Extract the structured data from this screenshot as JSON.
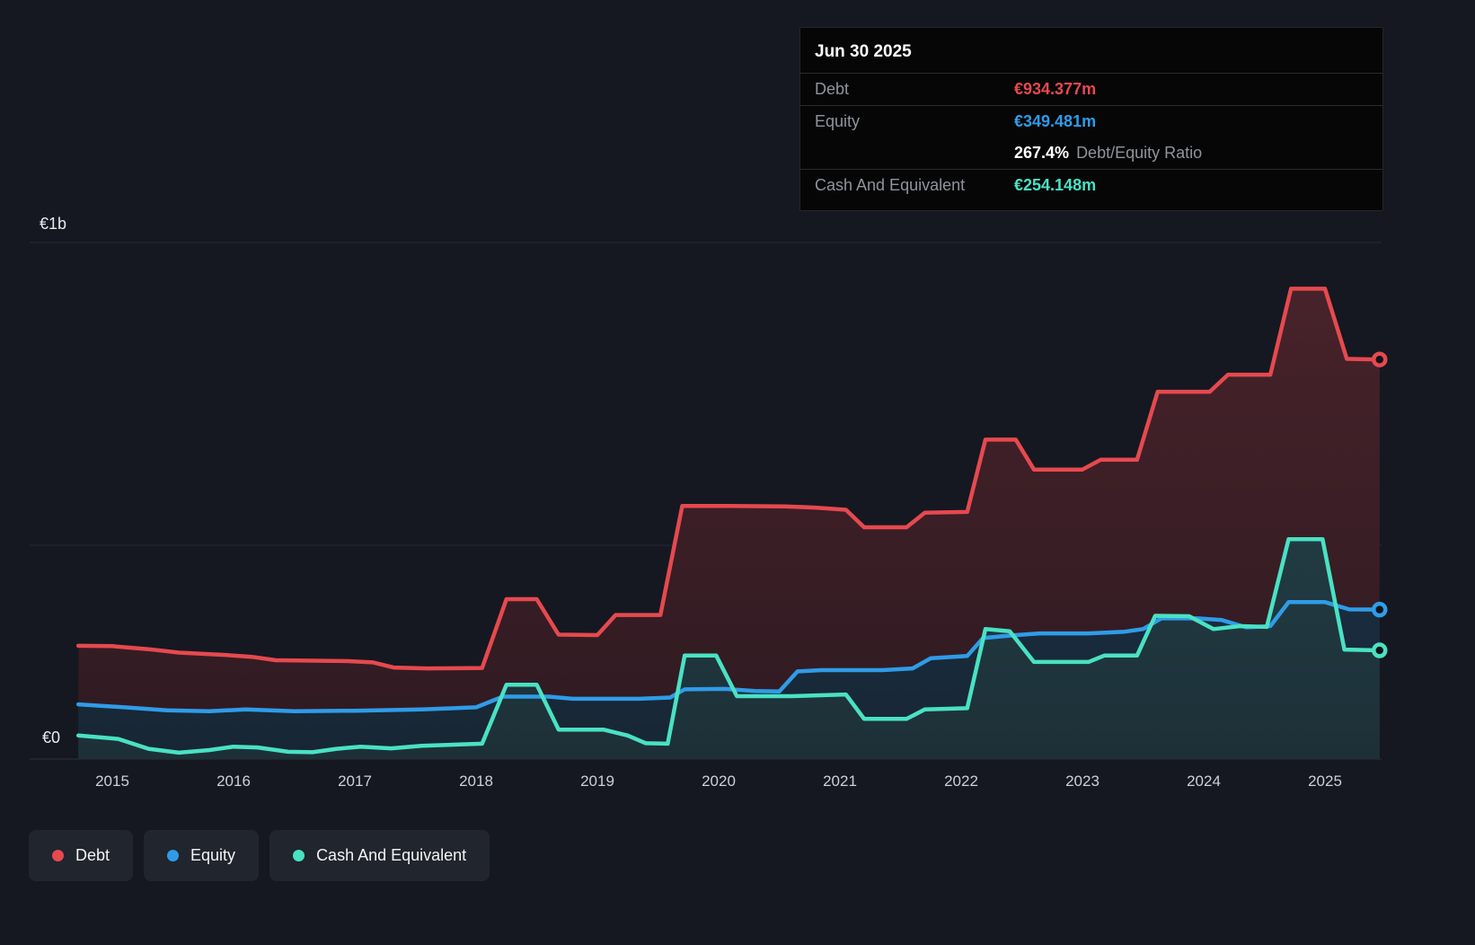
{
  "colors": {
    "background": "#151820",
    "debt": "#e6494f",
    "equity": "#2f9ce8",
    "cash": "#49e2c3"
  },
  "tooltip": {
    "title": "Jun 30 2025",
    "debt_label": "Debt",
    "debt_value": "€934.377m",
    "equity_label": "Equity",
    "equity_value": "€349.481m",
    "ratio_value": "267.4%",
    "ratio_label": "Debt/Equity Ratio",
    "cash_label": "Cash And Equivalent",
    "cash_value": "€254.148m"
  },
  "y_axis": {
    "top_label": "€1b",
    "zero_label": "€0"
  },
  "x_axis": {
    "ticks": [
      "2015",
      "2016",
      "2017",
      "2018",
      "2019",
      "2020",
      "2021",
      "2022",
      "2023",
      "2024",
      "2025"
    ]
  },
  "legend": {
    "debt": "Debt",
    "equity": "Equity",
    "cash": "Cash And Equivalent"
  },
  "chart_data": {
    "type": "area",
    "title": "Debt, Equity and Cash And Equivalent over time",
    "x_unit": "decimal_year",
    "y_unit": "EUR millions",
    "x_range": [
      2014.72,
      2025.5
    ],
    "ylim": [
      0,
      1210
    ],
    "grid": "horizontal",
    "legend_position": "bottom-left",
    "end_values_m": {
      "debt": 934.377,
      "equity": 349.481,
      "cash": 254.148
    },
    "series": [
      {
        "name": "Debt",
        "color": "#e6494f",
        "fill_top": "#4a232b",
        "fill_bottom": "#2e1a21",
        "points": [
          [
            2014.72,
            265
          ],
          [
            2015.0,
            264
          ],
          [
            2015.3,
            257
          ],
          [
            2015.55,
            249
          ],
          [
            2015.95,
            243
          ],
          [
            2016.15,
            239
          ],
          [
            2016.35,
            231
          ],
          [
            2016.95,
            229
          ],
          [
            2017.15,
            226
          ],
          [
            2017.32,
            214
          ],
          [
            2017.6,
            212
          ],
          [
            2018.05,
            213
          ],
          [
            2018.25,
            374
          ],
          [
            2018.5,
            374
          ],
          [
            2018.68,
            291
          ],
          [
            2019.0,
            290
          ],
          [
            2019.15,
            337
          ],
          [
            2019.52,
            337
          ],
          [
            2019.7,
            592
          ],
          [
            2020.1,
            592
          ],
          [
            2020.55,
            591
          ],
          [
            2020.8,
            588
          ],
          [
            2021.05,
            583
          ],
          [
            2021.2,
            542
          ],
          [
            2021.55,
            542
          ],
          [
            2021.7,
            576
          ],
          [
            2022.05,
            578
          ],
          [
            2022.2,
            747
          ],
          [
            2022.45,
            747
          ],
          [
            2022.6,
            677
          ],
          [
            2023.0,
            677
          ],
          [
            2023.15,
            700
          ],
          [
            2023.45,
            700
          ],
          [
            2023.62,
            859
          ],
          [
            2024.05,
            859
          ],
          [
            2024.2,
            899
          ],
          [
            2024.55,
            899
          ],
          [
            2024.72,
            1100
          ],
          [
            2025.0,
            1100
          ],
          [
            2025.18,
            936
          ],
          [
            2025.45,
            934.377
          ]
        ]
      },
      {
        "name": "Equity",
        "color": "#2f9ce8",
        "fill_top": "#1e3a55",
        "fill_bottom": "#172634",
        "points": [
          [
            2014.72,
            128
          ],
          [
            2015.1,
            121
          ],
          [
            2015.45,
            114
          ],
          [
            2015.8,
            112
          ],
          [
            2016.1,
            116
          ],
          [
            2016.5,
            112
          ],
          [
            2017.0,
            113
          ],
          [
            2017.55,
            116
          ],
          [
            2018.0,
            121
          ],
          [
            2018.22,
            146
          ],
          [
            2018.6,
            146
          ],
          [
            2018.8,
            141
          ],
          [
            2019.35,
            141
          ],
          [
            2019.6,
            144
          ],
          [
            2019.72,
            163
          ],
          [
            2020.05,
            164
          ],
          [
            2020.3,
            159
          ],
          [
            2020.5,
            158
          ],
          [
            2020.65,
            205
          ],
          [
            2020.85,
            208
          ],
          [
            2021.35,
            208
          ],
          [
            2021.6,
            212
          ],
          [
            2021.75,
            236
          ],
          [
            2022.05,
            241
          ],
          [
            2022.18,
            283
          ],
          [
            2022.45,
            290
          ],
          [
            2022.65,
            294
          ],
          [
            2023.05,
            294
          ],
          [
            2023.35,
            298
          ],
          [
            2023.5,
            304
          ],
          [
            2023.65,
            329
          ],
          [
            2023.95,
            329
          ],
          [
            2024.15,
            325
          ],
          [
            2024.35,
            308
          ],
          [
            2024.55,
            311
          ],
          [
            2024.7,
            367
          ],
          [
            2025.0,
            367
          ],
          [
            2025.2,
            350
          ],
          [
            2025.45,
            349.481
          ]
        ]
      },
      {
        "name": "Cash And Equivalent",
        "color": "#49e2c3",
        "fill_top": "#27494f",
        "fill_bottom": "#1d3038",
        "points": [
          [
            2014.72,
            55
          ],
          [
            2015.05,
            47
          ],
          [
            2015.3,
            24
          ],
          [
            2015.55,
            15
          ],
          [
            2015.8,
            21
          ],
          [
            2016.0,
            29
          ],
          [
            2016.2,
            27
          ],
          [
            2016.45,
            17
          ],
          [
            2016.65,
            16
          ],
          [
            2016.85,
            24
          ],
          [
            2017.05,
            29
          ],
          [
            2017.3,
            25
          ],
          [
            2017.55,
            31
          ],
          [
            2018.05,
            36
          ],
          [
            2018.25,
            174
          ],
          [
            2018.5,
            174
          ],
          [
            2018.68,
            69
          ],
          [
            2019.05,
            69
          ],
          [
            2019.25,
            55
          ],
          [
            2019.4,
            37
          ],
          [
            2019.58,
            36
          ],
          [
            2019.72,
            242
          ],
          [
            2019.98,
            242
          ],
          [
            2020.15,
            147
          ],
          [
            2020.6,
            147
          ],
          [
            2021.05,
            151
          ],
          [
            2021.2,
            94
          ],
          [
            2021.55,
            94
          ],
          [
            2021.7,
            116
          ],
          [
            2022.05,
            119
          ],
          [
            2022.2,
            304
          ],
          [
            2022.4,
            299
          ],
          [
            2022.6,
            227
          ],
          [
            2023.05,
            227
          ],
          [
            2023.18,
            242
          ],
          [
            2023.45,
            242
          ],
          [
            2023.6,
            335
          ],
          [
            2023.88,
            334
          ],
          [
            2024.08,
            304
          ],
          [
            2024.3,
            311
          ],
          [
            2024.52,
            309
          ],
          [
            2024.7,
            514
          ],
          [
            2024.98,
            514
          ],
          [
            2025.16,
            256
          ],
          [
            2025.45,
            254.148
          ]
        ]
      }
    ]
  }
}
